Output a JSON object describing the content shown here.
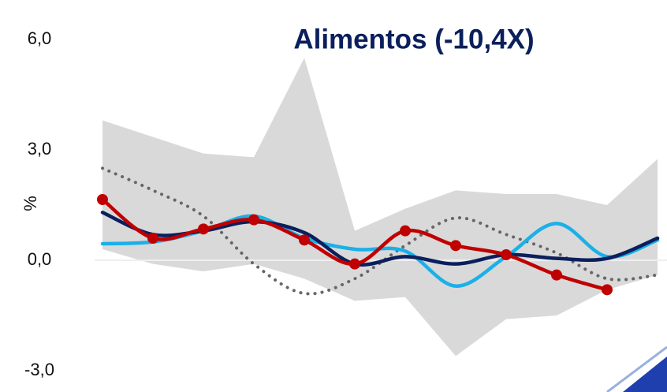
{
  "chart_data": {
    "type": "line",
    "title": "Alimentos (-10,4X)",
    "ylabel": "%",
    "categories": [
      null,
      null,
      null,
      null,
      null,
      null,
      null,
      null,
      null,
      null,
      null,
      null
    ],
    "ylim": [
      -3,
      6
    ],
    "yticks": [
      {
        "value": -3,
        "label": "-3,0"
      },
      {
        "value": 0,
        "label": "0,0"
      },
      {
        "value": 3,
        "label": "3,0"
      },
      {
        "value": 6,
        "label": "6,0"
      }
    ],
    "range": {
      "color": "#d9d9d9",
      "upper": [
        3.8,
        3.35,
        2.9,
        2.8,
        5.5,
        0.8,
        1.4,
        1.9,
        1.8,
        1.8,
        1.5,
        2.75
      ],
      "lower": [
        0.3,
        -0.1,
        -0.3,
        -0.1,
        -0.5,
        -1.1,
        -1.0,
        -2.6,
        -1.6,
        -1.5,
        -0.8,
        -0.4
      ]
    },
    "series": [
      {
        "color": "#666666",
        "style": "dotted",
        "values": [
          2.5,
          1.9,
          1.2,
          -0.1,
          -0.9,
          -0.5,
          0.4,
          1.15,
          0.7,
          0.2,
          -0.5,
          -0.4
        ]
      },
      {
        "color": "#1ab0e8",
        "style": "solid",
        "values": [
          0.45,
          0.5,
          0.8,
          1.2,
          0.6,
          0.3,
          0.25,
          -0.7,
          0.1,
          1.0,
          0.1,
          0.55
        ]
      },
      {
        "color": "#0a1f5c",
        "style": "solid",
        "values": [
          1.3,
          0.7,
          0.8,
          1.05,
          0.75,
          -0.1,
          0.1,
          -0.1,
          0.15,
          0.05,
          0.05,
          0.6
        ]
      },
      {
        "color": "#c00000",
        "style": "markers",
        "values": [
          1.65,
          0.6,
          0.85,
          1.1,
          0.55,
          -0.1,
          0.8,
          0.4,
          0.15,
          -0.4,
          -0.8,
          null
        ]
      }
    ]
  }
}
